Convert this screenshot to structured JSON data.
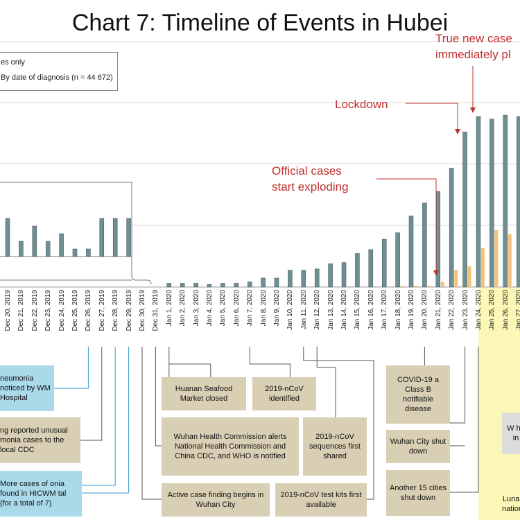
{
  "title": "Chart 7: Timeline of Events in Hubei",
  "legend": {
    "line1": "es only",
    "line2": "By date of diagnosis (n = 44 672)"
  },
  "annotations": {
    "true_new_cases": [
      "True new case",
      "immediately pl"
    ],
    "lockdown": "Lockdown",
    "official_cases": [
      "Official cases",
      "start exploding"
    ]
  },
  "colors": {
    "bar_main": "#6f8f93",
    "bar_orange": "#f4c27a",
    "annotation": "#c0302b",
    "event_box": "#d9cfb4",
    "event_box_blue": "#aad9ea",
    "period_yellow": "#fbf7b6"
  },
  "chart_data": {
    "type": "bar",
    "title": "Chart 7: Timeline of Events in Hubei",
    "categories": [
      "Dec 20, 2019",
      "Dec 21, 2019",
      "Dec 22, 2019",
      "Dec 23, 2019",
      "Dec 24, 2019",
      "Dec 25, 2019",
      "Dec 26, 2019",
      "Dec 27, 2019",
      "Dec 28, 2019",
      "Dec 29, 2019",
      "Dec 30, 2019",
      "Dec 31, 2019",
      "Jan 1, 2020",
      "Jan 2, 2020",
      "Jan 3, 2020",
      "Jan 4, 2020",
      "Jan 5, 2020",
      "Jan 6, 2020",
      "Jan 7, 2020",
      "Jan 8, 2020",
      "Jan 9, 2020",
      "Jan 10, 2020",
      "Jan 11, 2020",
      "Jan 12, 2020",
      "Jan 13, 2020",
      "Jan 14, 2020",
      "Jan 15, 2020",
      "Jan 16, 2020",
      "Jan 17, 2020",
      "Jan 18, 2020",
      "Jan 19, 2020",
      "Jan 20, 2020",
      "Jan 21, 2020",
      "Jan 22, 2020",
      "Jan 23, 2020",
      "Jan 24, 2020",
      "Jan 25, 2020",
      "Jan 26, 2020",
      "Jan 27, 2020"
    ],
    "series": [
      {
        "name": "By date of diagnosis",
        "values": [
          null,
          null,
          null,
          null,
          null,
          null,
          null,
          null,
          null,
          null,
          null,
          null,
          3,
          3,
          3,
          2,
          3,
          3,
          4,
          7,
          7,
          13,
          13,
          14,
          18,
          19,
          26,
          29,
          37,
          42,
          55,
          65,
          74,
          92,
          120,
          132,
          130,
          133,
          132
        ]
      },
      {
        "name": "Hubei cases",
        "values": [
          null,
          null,
          null,
          null,
          null,
          null,
          null,
          null,
          null,
          null,
          null,
          null,
          0,
          0,
          0,
          0,
          0,
          0,
          0,
          0,
          0,
          0,
          0,
          0,
          0,
          0,
          0,
          0,
          0,
          1,
          1,
          1,
          4,
          13,
          16,
          30,
          44,
          41,
          50
        ]
      }
    ],
    "inset": {
      "categories": [
        "Dec 20, 2019",
        "Dec 21, 2019",
        "Dec 22, 2019",
        "Dec 23, 2019",
        "Dec 24, 2019",
        "Dec 25, 2019",
        "Dec 26, 2019",
        "Dec 27, 2019",
        "Dec 28, 2019",
        "Dec 29, 2019"
      ],
      "values": [
        5,
        2,
        4,
        2,
        3,
        1,
        1,
        5,
        5,
        5
      ]
    },
    "xlabel": "",
    "ylabel": "",
    "ylim": [
      0,
      150
    ],
    "grid": true
  },
  "events": {
    "e1": "neumonia noticed by WM Hospital",
    "e2": "ng reported unusual monia cases to the local CDC",
    "e3": "More cases of onia found in HICWM tal (for a total of 7)",
    "e4": "Huanan Seafood Market closed",
    "e5": "2019-nCoV identified",
    "e6": "Wuhan Health Commission alerts National Health Commission and China CDC, and WHO is notified",
    "e7": "2019-nCoV sequences first shared",
    "e8": "Active case finding begins in Wuhan City",
    "e9": "2019-nCoV test kits first available",
    "e10": "COVID-19 a Class B notifiable disease",
    "e11": "Wuhan City shut down",
    "e12": "Another 15 cities shut down",
    "e13": "W he in",
    "e14": "Lunar nation"
  }
}
